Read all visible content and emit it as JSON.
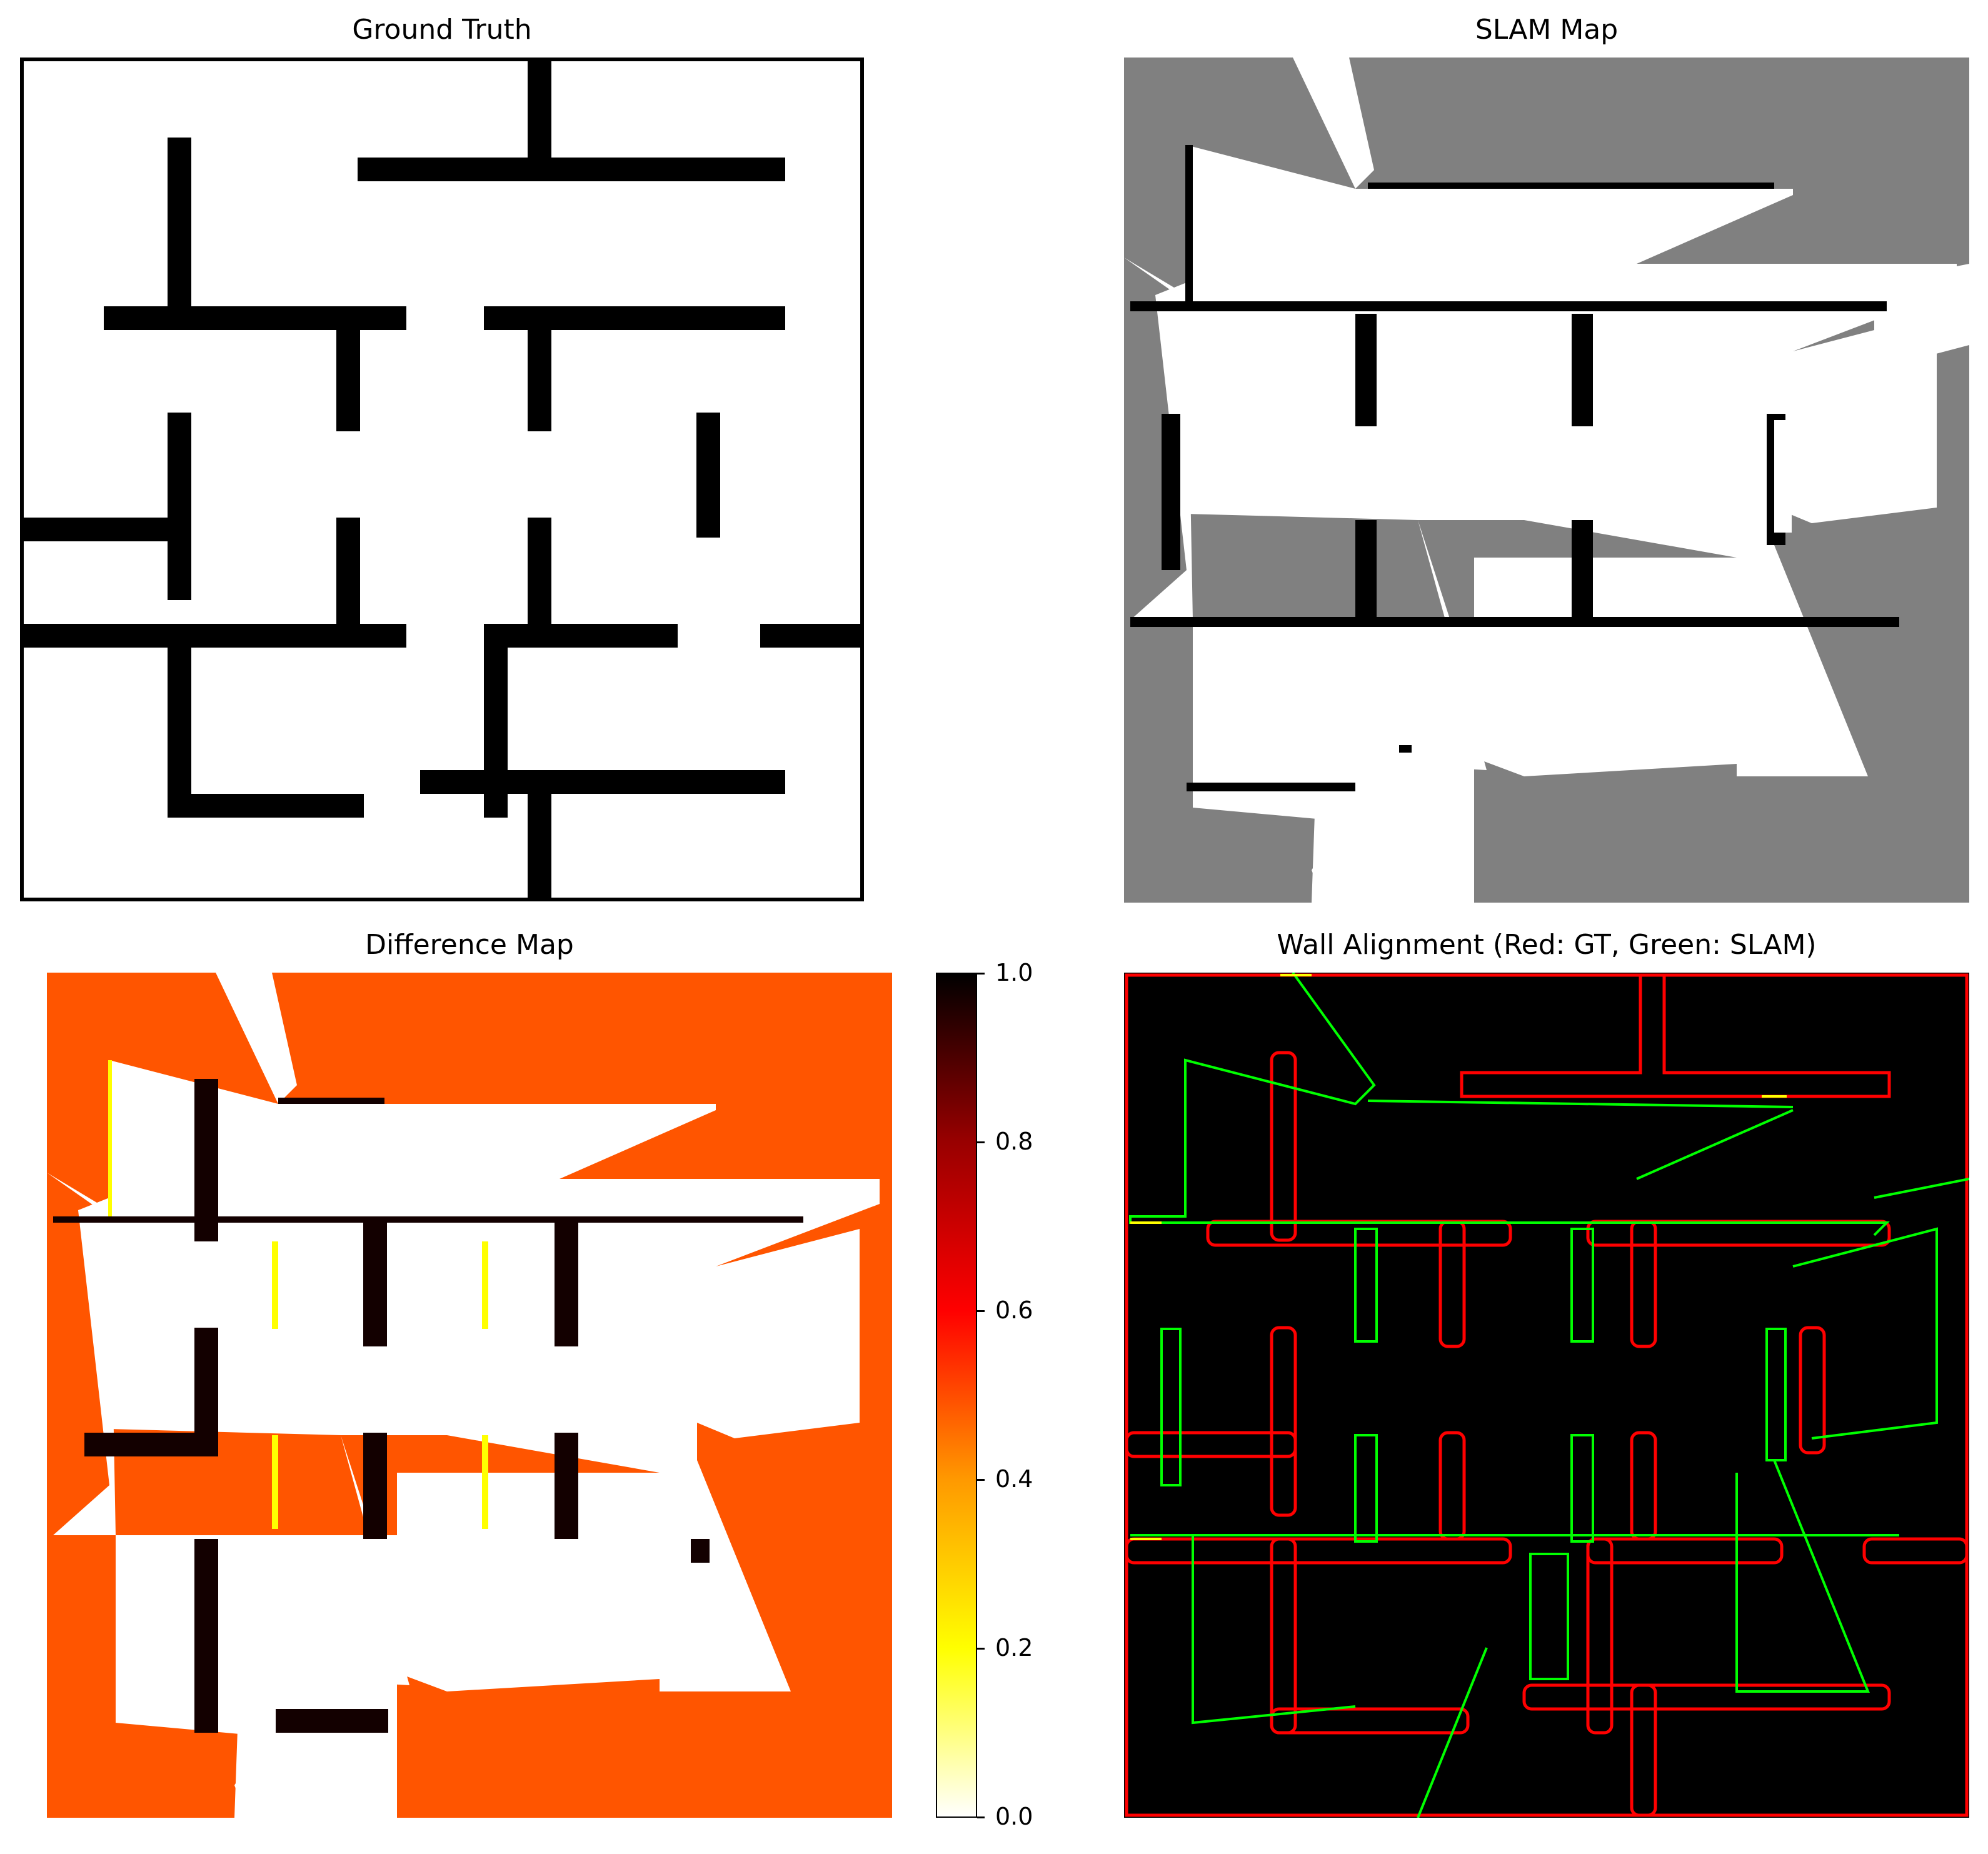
{
  "panels": {
    "ground_truth": {
      "title": "Ground Truth"
    },
    "slam_map": {
      "title": "SLAM Map"
    },
    "difference_map": {
      "title": "Difference Map"
    },
    "wall_alignment": {
      "title": "Wall Alignment (Red: GT, Green: SLAM)"
    }
  },
  "colorbar": {
    "ticks": [
      "0.0",
      "0.2",
      "0.4",
      "0.6",
      "0.8",
      "1.0"
    ],
    "colormap": [
      "#ffffff",
      "#ffff00",
      "#ff9900",
      "#ff0000",
      "#990000",
      "#000000"
    ]
  },
  "colors": {
    "wall": "#000000",
    "free": "#ffffff",
    "unknown": "#808080",
    "diff_unknown": "#ff5500",
    "gt_edge": "#ff0000",
    "slam_edge": "#00ff00",
    "overlap_edge": "#ffff00"
  }
}
